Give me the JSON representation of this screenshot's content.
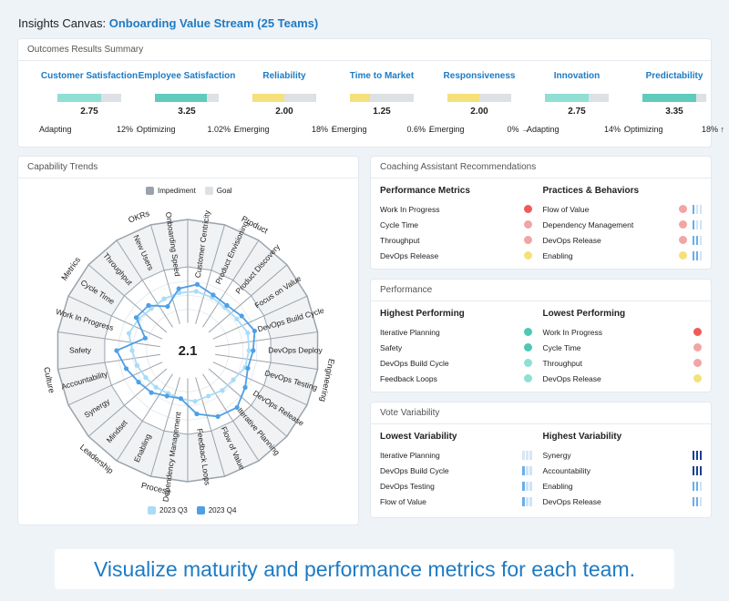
{
  "header": {
    "prefix": "Insights Canvas:",
    "team": "Onboarding Value Stream (25 Teams)"
  },
  "outcomes": {
    "title": "Outcomes Results Summary",
    "items": [
      {
        "name": "Customer Satisfaction",
        "score": "2.75",
        "fill": 0.69,
        "color": "#8fdfd5",
        "level": "Adapting",
        "change": "12%",
        "arrow": "up"
      },
      {
        "name": "Employee Satisfaction",
        "score": "3.25",
        "fill": 0.81,
        "color": "#5fcbbd",
        "level": "Optimizing",
        "change": "1.02%",
        "arrow": "down"
      },
      {
        "name": "Reliability",
        "score": "2.00",
        "fill": 0.5,
        "color": "#f5e07a",
        "level": "Emerging",
        "change": "18%",
        "arrow": "up"
      },
      {
        "name": "Time to Market",
        "score": "1.25",
        "fill": 0.31,
        "color": "#f5e07a",
        "level": "Emerging",
        "change": "0.6%",
        "arrow": "down"
      },
      {
        "name": "Responsiveness",
        "score": "2.00",
        "fill": 0.5,
        "color": "#f5e07a",
        "level": "Emerging",
        "change": "0%",
        "arrow": "right"
      },
      {
        "name": "Innovation",
        "score": "2.75",
        "fill": 0.69,
        "color": "#8fdfd5",
        "level": "Adapting",
        "change": "14%",
        "arrow": "up"
      },
      {
        "name": "Predictability",
        "score": "3.35",
        "fill": 0.84,
        "color": "#5fcbbd",
        "level": "Optimizing",
        "change": "18%",
        "arrow": "up"
      }
    ]
  },
  "trends": {
    "title": "Capability Trends",
    "legend_top": [
      {
        "label": "Impediment",
        "color": "#9aa3ac"
      },
      {
        "label": "Goal",
        "color": "#dde1e5"
      }
    ],
    "legend_bottom": [
      {
        "label": "2023 Q3",
        "color": "#a9dcf5"
      },
      {
        "label": "2023 Q4",
        "color": "#4f9fe6"
      }
    ],
    "center_score": "2.1",
    "categories": [
      "Product",
      "Engineering",
      "Process",
      "Leadership",
      "Culture",
      "Metrics",
      "OKRs"
    ],
    "capabilities": [
      "Customer Centricity",
      "Product Envisioning",
      "Product Discovery",
      "Focus on Value",
      "DevOps Build Cycle",
      "DevOps Deploy",
      "DevOps Testing",
      "DevOps Release",
      "Iterative Planning",
      "Flow of Value",
      "Feedback Loops",
      "Dependency Management",
      "Enabling",
      "Mindset",
      "Synergy",
      "Accountability",
      "Safety",
      "Work In Progress",
      "Cycle Time",
      "Throughput",
      "New Users",
      "Onboarding Speed"
    ]
  },
  "chart_data": {
    "type": "radar",
    "center_value": 2.1,
    "categories": [
      "Customer Centricity",
      "Product Envisioning",
      "Product Discovery",
      "Focus on Value",
      "DevOps Build Cycle",
      "DevOps Deploy",
      "DevOps Testing",
      "DevOps Release",
      "Iterative Planning",
      "Flow of Value",
      "Feedback Loops",
      "Dependency Management",
      "Enabling",
      "Mindset",
      "Synergy",
      "Accountability",
      "Safety",
      "Work In Progress",
      "Cycle Time",
      "Throughput",
      "New Users",
      "Onboarding Speed"
    ],
    "series": [
      {
        "name": "2023 Q3",
        "values": [
          2.3,
          2.2,
          2.1,
          2.2,
          2.5,
          2.4,
          2.3,
          1.9,
          1.8,
          1.6,
          1.7,
          1.5,
          1.4,
          1.5,
          1.6,
          1.8,
          2.0,
          2.4,
          2.2,
          2.0,
          2.1,
          2.2
        ]
      },
      {
        "name": "2023 Q4",
        "values": [
          2.8,
          2.4,
          2.3,
          2.6,
          3.0,
          2.7,
          2.5,
          2.9,
          3.4,
          3.2,
          2.6,
          1.5,
          1.6,
          2.0,
          2.2,
          2.6,
          3.1,
          1.2,
          2.4,
          2.3,
          1.5,
          2.5
        ]
      }
    ],
    "rlim": [
      0,
      4
    ]
  },
  "coaching": {
    "title": "Coaching Assistant Recommendations",
    "left_title": "Performance Metrics",
    "left": [
      {
        "label": "Work In Progress",
        "color": "#ef5b5b"
      },
      {
        "label": "Cycle Time",
        "color": "#f2a5a5"
      },
      {
        "label": "Throughput",
        "color": "#f2a5a5"
      },
      {
        "label": "DevOps Release",
        "color": "#f5e07a"
      }
    ],
    "right_title": "Practices & Behaviors",
    "right": [
      {
        "label": "Flow of Value",
        "color": "#f2a5a5",
        "bars": 1
      },
      {
        "label": "Dependency Management",
        "color": "#f2a5a5",
        "bars": 1
      },
      {
        "label": "DevOps Release",
        "color": "#f2a5a5",
        "bars": 2
      },
      {
        "label": "Enabling",
        "color": "#f5e07a",
        "bars": 2
      }
    ]
  },
  "performance": {
    "title": "Performance",
    "left_title": "Highest Performing",
    "left": [
      {
        "label": "Iterative Planning",
        "color": "#4fc7b5"
      },
      {
        "label": "Safety",
        "color": "#4fc7b5"
      },
      {
        "label": "DevOps Build Cycle",
        "color": "#8fdfd5"
      },
      {
        "label": "Feedback Loops",
        "color": "#8fdfd5"
      }
    ],
    "right_title": "Lowest Performing",
    "right": [
      {
        "label": "Work In Progress",
        "color": "#ef5b5b"
      },
      {
        "label": "Cycle Time",
        "color": "#f2a5a5"
      },
      {
        "label": "Throughput",
        "color": "#f2a5a5"
      },
      {
        "label": "DevOps Release",
        "color": "#f5e07a"
      }
    ]
  },
  "variability": {
    "title": "Vote Variability",
    "left_title": "Lowest Variability",
    "left": [
      {
        "label": "Iterative Planning",
        "bars": 0
      },
      {
        "label": "DevOps Build Cycle",
        "bars": 1
      },
      {
        "label": "DevOps Testing",
        "bars": 1
      },
      {
        "label": "Flow of Value",
        "bars": 1
      }
    ],
    "right_title": "Highest Variability",
    "right": [
      {
        "label": "Synergy",
        "bars": 3
      },
      {
        "label": "Accountability",
        "bars": 3
      },
      {
        "label": "Enabling",
        "bars": 2
      },
      {
        "label": "DevOps Release",
        "bars": 2
      }
    ]
  },
  "banner": {
    "text": "Visualize maturity and performance metrics for each team."
  }
}
